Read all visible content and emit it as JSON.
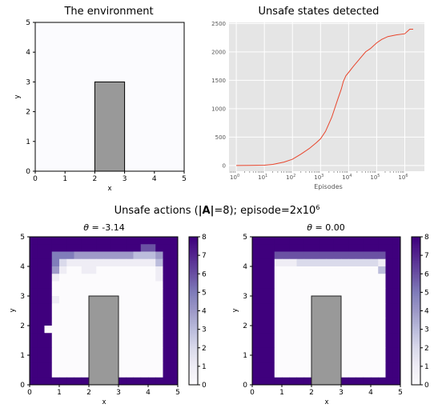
{
  "figure": {
    "suptitle_parts": [
      "Unsafe actions (",
      "|A|",
      "=8); episode=2x10",
      "6"
    ]
  },
  "chart_data": [
    {
      "type": "heatmap",
      "title": "The environment",
      "xlabel": "x",
      "ylabel": "y",
      "xlim": [
        0,
        5
      ],
      "ylim": [
        0,
        5
      ],
      "xticks": [
        "0",
        "1",
        "2",
        "3",
        "4",
        "5"
      ],
      "yticks": [
        "0",
        "1",
        "2",
        "3",
        "4",
        "5"
      ],
      "background_color": "#fbfbfe",
      "obstacle": {
        "x": [
          2,
          3
        ],
        "y": [
          0,
          3
        ],
        "color": "#999999"
      }
    },
    {
      "type": "line",
      "title": "Unsafe states detected",
      "xlabel": "Episodes",
      "ylabel": "",
      "xscale": "log",
      "xlim": [
        0.55,
        5000000
      ],
      "ylim": [
        -100,
        2520
      ],
      "xticks_exp": [
        "0",
        "1",
        "2",
        "3",
        "4",
        "5",
        "6"
      ],
      "yticks": [
        0,
        500,
        1000,
        1500,
        2000,
        2500
      ],
      "grid": true,
      "background_color": "#e5e5e5",
      "line_color": "#e8452c",
      "series": [
        {
          "x": [
            1,
            3,
            10,
            20,
            50,
            100,
            200,
            400,
            700,
            1000,
            1500,
            2500,
            4000,
            5500,
            6500,
            8000,
            10000,
            15000,
            25000,
            40000,
            60000,
            100000,
            150000,
            250000,
            500000,
            1000000,
            1500000,
            2000000
          ],
          "y": [
            0,
            1,
            5,
            20,
            60,
            110,
            200,
            300,
            400,
            470,
            600,
            850,
            1150,
            1350,
            1480,
            1580,
            1640,
            1750,
            1880,
            2000,
            2060,
            2160,
            2220,
            2270,
            2300,
            2320,
            2400,
            2400
          ]
        }
      ]
    },
    {
      "type": "heatmap",
      "title_prefix": "θ",
      "title_value": " = -3.14",
      "xlabel": "x",
      "ylabel": "y",
      "xlim": [
        0,
        5
      ],
      "ylim": [
        0,
        5
      ],
      "grid_size": 20,
      "colormap": "Purples",
      "vmin": 0,
      "vmax": 8,
      "colorbar_ticks": [
        0,
        1,
        2,
        3,
        4,
        5,
        6,
        7,
        8
      ],
      "obstacle": {
        "x": [
          2,
          3
        ],
        "y": [
          0,
          3
        ],
        "color": "#999999"
      },
      "values": [
        "88888888888888888888",
        "88888888888888866888",
        "88855544444444333488",
        "88852111111111111388",
        "88841001100000000188",
        "88810000000000000188",
        "88800000000000000088",
        "88800000000000000088",
        "88810000000000000088",
        "88800000000000000088",
        "88800000001000000088",
        "88800000000000000088",
        "88000000000000000088",
        "88800000000000000088",
        "88800000000000000088",
        "88800000000000000088",
        "88800000000000000088",
        "88800000000000000088",
        "88800000000000000088",
        "88888888888888888888"
      ]
    },
    {
      "type": "heatmap",
      "title_prefix": "θ",
      "title_value": " = 0.00",
      "xlabel": "x",
      "ylabel": "y",
      "xlim": [
        0,
        5
      ],
      "ylim": [
        0,
        5
      ],
      "grid_size": 20,
      "colormap": "Purples",
      "vmin": 0,
      "vmax": 8,
      "colorbar_ticks": [
        0,
        1,
        2,
        3,
        4,
        5,
        6,
        7,
        8
      ],
      "obstacle": {
        "x": [
          2,
          3
        ],
        "y": [
          0,
          3
        ],
        "color": "#999999"
      },
      "values": [
        "88888888888888888888",
        "88888888888888888888",
        "88866666666666666688",
        "88811122222222222188",
        "88800000000000000388",
        "88800000000000000088",
        "88800000000000000088",
        "88800000000000000088",
        "88800000000000000088",
        "88800000000000000088",
        "88800000000000000088",
        "88800000000000000088",
        "88800000000000000088",
        "88800000000000000088",
        "88800000000000000088",
        "88800000000000000088",
        "88800000000000000088",
        "88800000000000000088",
        "88800000000000000088",
        "88888888888888888888"
      ]
    }
  ]
}
